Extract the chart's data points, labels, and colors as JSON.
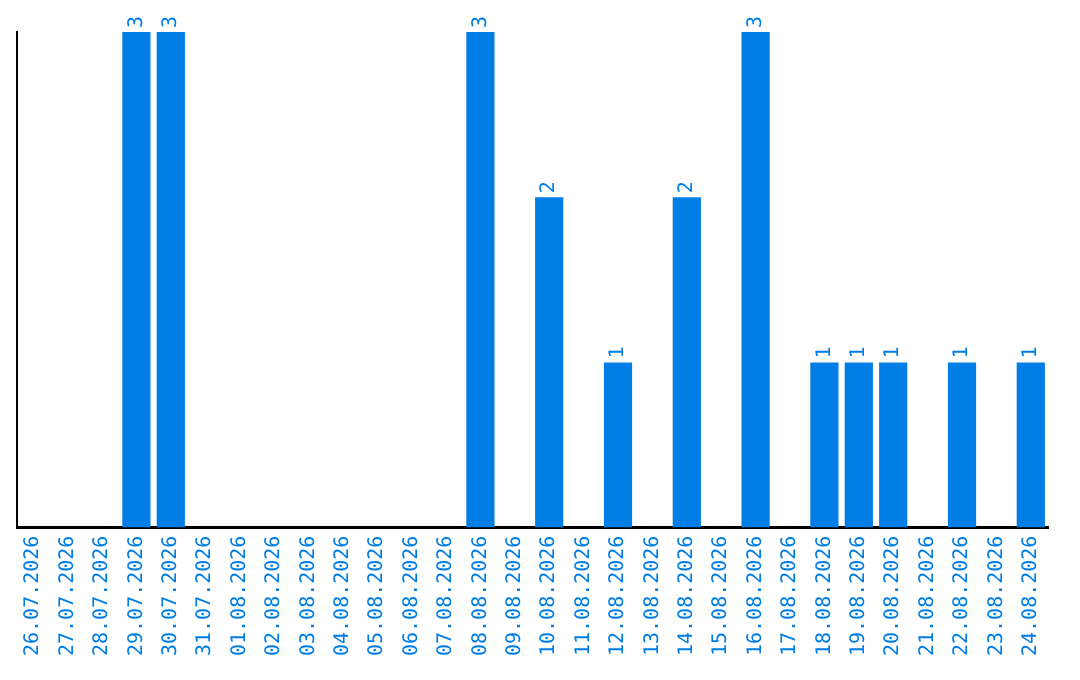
{
  "chart_data": {
    "type": "bar",
    "categories": [
      "26.07.2026",
      "27.07.2026",
      "28.07.2026",
      "29.07.2026",
      "30.07.2026",
      "31.07.2026",
      "01.08.2026",
      "02.08.2026",
      "03.08.2026",
      "04.08.2026",
      "05.08.2026",
      "06.08.2026",
      "07.08.2026",
      "08.08.2026",
      "09.08.2026",
      "10.08.2026",
      "11.08.2026",
      "12.08.2026",
      "13.08.2026",
      "14.08.2026",
      "15.08.2026",
      "16.08.2026",
      "17.08.2026",
      "18.08.2026",
      "19.08.2026",
      "20.08.2026",
      "21.08.2026",
      "22.08.2026",
      "23.08.2026",
      "24.08.2026"
    ],
    "values": [
      null,
      null,
      null,
      3,
      3,
      null,
      null,
      null,
      null,
      null,
      null,
      null,
      null,
      3,
      null,
      2,
      null,
      1,
      null,
      2,
      null,
      3,
      null,
      1,
      1,
      1,
      null,
      1,
      null,
      1
    ],
    "color": "#007ee5",
    "ylim": [
      0,
      3
    ],
    "tick_labels": "x",
    "data_labels": true,
    "grid": false,
    "legend": false
  }
}
